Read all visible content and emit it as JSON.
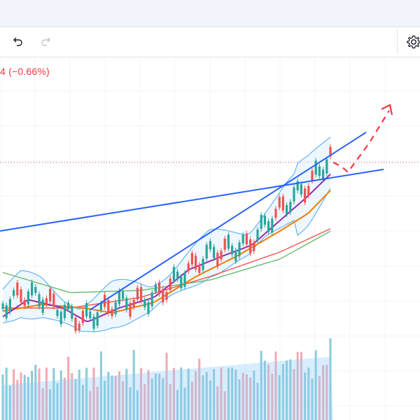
{
  "toolbar": {
    "undo_icon": "undo-arrow-icon",
    "redo_icon": "redo-arrow-icon",
    "settings_icon": "gear-icon"
  },
  "legend": {
    "change_text": "4 (−0.66%)",
    "color": "#f23645"
  },
  "colors": {
    "up_candle": "#26a69a",
    "down_candle": "#ef5350",
    "trendline": "#2962ff",
    "projection_arrow": "#f23645",
    "ma_fast": "#9c27b0",
    "ma_mid": "#f57c00",
    "ma_slow": "#ef5350",
    "ma_long": "#66bb6a",
    "bollinger": "#64b5f6",
    "price_line": "#f23645"
  }
}
